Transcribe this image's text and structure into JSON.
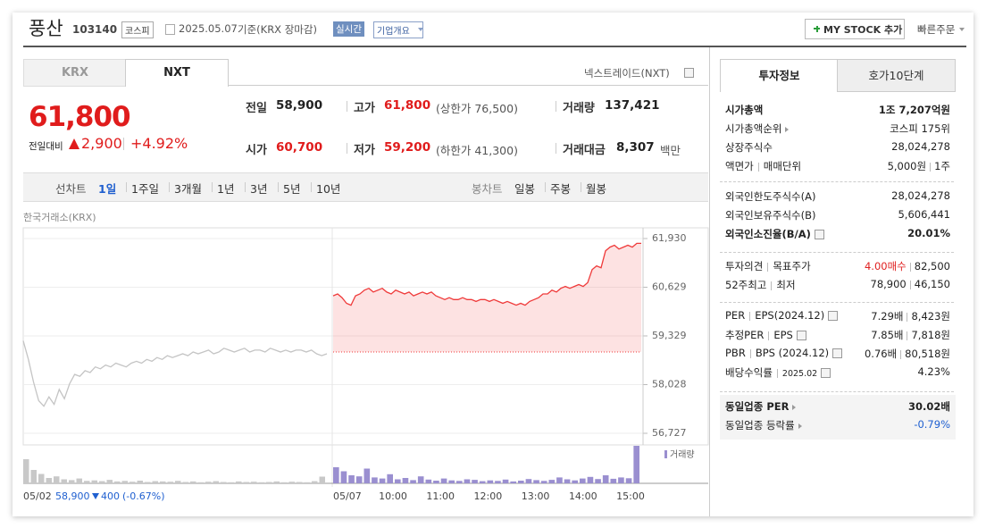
{
  "header": {
    "name": "풍산",
    "code": "103140",
    "market": "코스피",
    "date": "2025.05.07",
    "basis": "기준(KRX 장마감)",
    "realtime": "실시간",
    "company_info": "기업개요",
    "my_stock": "MY STOCK 추가",
    "quick_order": "빠른주문"
  },
  "tabs": [
    "KRX",
    "NXT"
  ],
  "nxt_link": "넥스트레이드(NXT)",
  "price": {
    "current": "61,800",
    "change_label": "전일대비",
    "change": "2,900",
    "change_pct": "+4.92%"
  },
  "stats": [
    {
      "label": "전일",
      "value": "58,900"
    },
    {
      "label": "고가",
      "value": "61,800",
      "note": "(상한가 76,500)"
    },
    {
      "label": "거래량",
      "value": "137,421"
    },
    {
      "label": "시가",
      "value": "60,700"
    },
    {
      "label": "저가",
      "value": "59,200",
      "note": "(하한가 41,300)"
    },
    {
      "label": "거래대금",
      "value": "8,307",
      "note": "백만"
    }
  ],
  "toolbar": {
    "line_chart": "선차트",
    "periods": [
      "1일",
      "1주일",
      "3개월",
      "1년",
      "3년",
      "5년",
      "10년"
    ],
    "candle_chart": "봉차트",
    "candle_periods": [
      "일봉",
      "주봉",
      "월봉"
    ]
  },
  "chart_data": {
    "type": "line",
    "source": "한국거래소(KRX)",
    "ylim": [
      56727,
      61930
    ],
    "yticks": [
      {
        "value": 61930,
        "label": "61,930"
      },
      {
        "value": 60629,
        "label": "60,629"
      },
      {
        "value": 59329,
        "label": "59,329"
      },
      {
        "value": 58028,
        "label": "58,028"
      },
      {
        "value": 56727,
        "label": "56,727"
      }
    ],
    "reference": 58900,
    "series": [
      {
        "name": "05/02",
        "color": "#c4c4c4",
        "values": [
          59200,
          58700,
          58100,
          57600,
          57450,
          57700,
          57500,
          57900,
          57650,
          58050,
          58300,
          58250,
          58400,
          58350,
          58500,
          58450,
          58550,
          58500,
          58600,
          58550,
          58500,
          58600,
          58650,
          58600,
          58700,
          58650,
          58750,
          58700,
          58800,
          58750,
          58800,
          58850,
          58800,
          58900,
          58850,
          58900,
          58950,
          58850,
          58900,
          59000,
          58950,
          58900,
          58950,
          59000,
          58900,
          58950,
          58950,
          58900,
          59000,
          58950,
          58900,
          58950,
          58900,
          58950,
          58950,
          58900,
          58950,
          58850,
          58800,
          58850
        ]
      },
      {
        "name": "05/07",
        "color": "#ef3a3a",
        "values": [
          60400,
          60450,
          60350,
          60200,
          60150,
          60400,
          60450,
          60550,
          60600,
          60500,
          60550,
          60600,
          60500,
          60450,
          60550,
          60500,
          60450,
          60500,
          60400,
          60450,
          60500,
          60450,
          60500,
          60400,
          60350,
          60300,
          60350,
          60300,
          60300,
          60350,
          60300,
          60300,
          60250,
          60300,
          60300,
          60250,
          60300,
          60250,
          60200,
          60250,
          60200,
          60150,
          60200,
          60150,
          60250,
          60300,
          60350,
          60450,
          60450,
          60550,
          60500,
          60600,
          60650,
          60600,
          60650,
          60700,
          60650,
          60750,
          61100,
          61200,
          61150,
          61600,
          61700,
          61750,
          61650,
          61700,
          61750,
          61700,
          61800,
          61800
        ]
      }
    ],
    "xticks": [
      "10:00",
      "11:00",
      "12:00",
      "13:00",
      "14:00",
      "15:00"
    ],
    "volume": {
      "name": "거래량",
      "series": [
        {
          "color": "#c8c8c8",
          "values": [
            9000,
            5000,
            3500,
            2000,
            2600,
            1500,
            1200,
            1800,
            900,
            1100,
            800,
            1300,
            700,
            900,
            600,
            1000,
            500,
            800,
            700,
            600,
            900,
            500,
            700,
            400,
            600,
            800,
            500,
            400,
            700,
            500,
            600,
            400,
            500,
            700,
            400,
            600,
            500,
            400,
            800,
            2500
          ]
        },
        {
          "color": "#9a8fd0",
          "values": [
            6000,
            4500,
            3000,
            2600,
            5500,
            2200,
            1800,
            3400,
            1500,
            2000,
            1200,
            2600,
            1400,
            1000,
            1800,
            1100,
            900,
            1500,
            1300,
            800,
            1100,
            900,
            1400,
            700,
            1000,
            1600,
            1200,
            900,
            1300,
            2200,
            1500,
            1100,
            1800,
            2400,
            1600,
            3000,
            1700,
            2200,
            1900,
            14000
          ]
        }
      ]
    }
  },
  "prev_day": {
    "date": "05/02",
    "close": "58,900",
    "change": "400",
    "change_pct": "(-0.67%)"
  },
  "info": {
    "tabs": [
      "투자정보",
      "호가10단계"
    ],
    "groups": [
      [
        {
          "label": [
            "시가총액"
          ],
          "values": [
            "1조 7,207억원"
          ],
          "bold": true
        },
        {
          "label": [
            "시가총액순위"
          ],
          "arrow": true,
          "values": [
            "코스피 175위"
          ]
        },
        {
          "label": [
            "상장주식수"
          ],
          "values": [
            "28,024,278"
          ]
        },
        {
          "label": [
            "액면가",
            "매매단위"
          ],
          "values": [
            "5,000원",
            "1주"
          ]
        }
      ],
      [
        {
          "label": [
            "외국인한도주식수(A)"
          ],
          "values": [
            "28,024,278"
          ]
        },
        {
          "label": [
            "외국인보유주식수(B)"
          ],
          "values": [
            "5,606,441"
          ]
        },
        {
          "label": [
            "외국인소진율(B/A)"
          ],
          "help": true,
          "values": [
            "20.01%"
          ],
          "bold": true
        }
      ],
      [
        {
          "label": [
            "투자의견",
            "목표주가"
          ],
          "values": [
            "4.00매수",
            "82,500"
          ],
          "value_color": "#e02020"
        },
        {
          "label": [
            "52주최고",
            "최저"
          ],
          "values": [
            "78,900",
            "46,150"
          ]
        }
      ],
      [
        {
          "label": [
            "PER",
            "EPS(2024.12)"
          ],
          "help": true,
          "values": [
            "7.29배",
            "8,423원"
          ]
        },
        {
          "label": [
            "추정PER",
            "EPS"
          ],
          "help": true,
          "values": [
            "7.85배",
            "7,818원"
          ]
        },
        {
          "label": [
            "PBR",
            "BPS (2024.12)"
          ],
          "help": true,
          "values": [
            "0.76배",
            "80,518원"
          ]
        },
        {
          "label": [
            "배당수익률",
            "2025.02"
          ],
          "help": true,
          "values": [
            "4.23%"
          ]
        }
      ],
      [
        {
          "label": [
            "동일업종 PER"
          ],
          "arrow": true,
          "values": [
            "30.02배"
          ],
          "bold": true
        },
        {
          "label": [
            "동일업종 등락률"
          ],
          "arrow": true,
          "values": [
            "-0.79%"
          ],
          "value_color": "#2060d0"
        }
      ]
    ]
  }
}
